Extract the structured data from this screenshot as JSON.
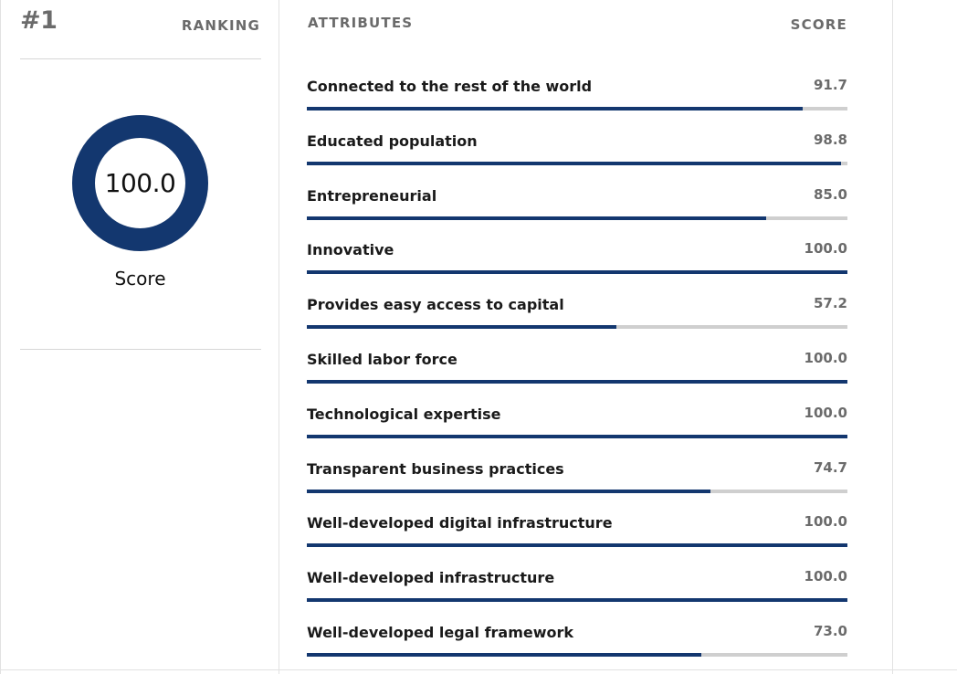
{
  "ranking": {
    "number": "#1",
    "label": "RANKING",
    "overall_score": "100.0",
    "overall_fraction": 1.0,
    "score_caption": "Score"
  },
  "attributes_panel": {
    "header": "ATTRIBUTES",
    "score_header": "SCORE",
    "items": [
      {
        "name": "Connected to the rest of the world",
        "score": "91.7",
        "fraction": 0.917
      },
      {
        "name": "Educated population",
        "score": "98.8",
        "fraction": 0.988
      },
      {
        "name": "Entrepreneurial",
        "score": "85.0",
        "fraction": 0.85
      },
      {
        "name": "Innovative",
        "score": "100.0",
        "fraction": 1.0
      },
      {
        "name": "Provides easy access to capital",
        "score": "57.2",
        "fraction": 0.572
      },
      {
        "name": "Skilled labor force",
        "score": "100.0",
        "fraction": 1.0
      },
      {
        "name": "Technological expertise",
        "score": "100.0",
        "fraction": 1.0
      },
      {
        "name": "Transparent business practices",
        "score": "74.7",
        "fraction": 0.747
      },
      {
        "name": "Well-developed digital infrastructure",
        "score": "100.0",
        "fraction": 1.0
      },
      {
        "name": "Well-developed infrastructure",
        "score": "100.0",
        "fraction": 1.0
      },
      {
        "name": "Well-developed legal framework",
        "score": "73.0",
        "fraction": 0.73
      }
    ]
  },
  "colors": {
    "accent": "#13376f",
    "track": "#cfcfcf",
    "muted_text": "#6b6b6b"
  }
}
